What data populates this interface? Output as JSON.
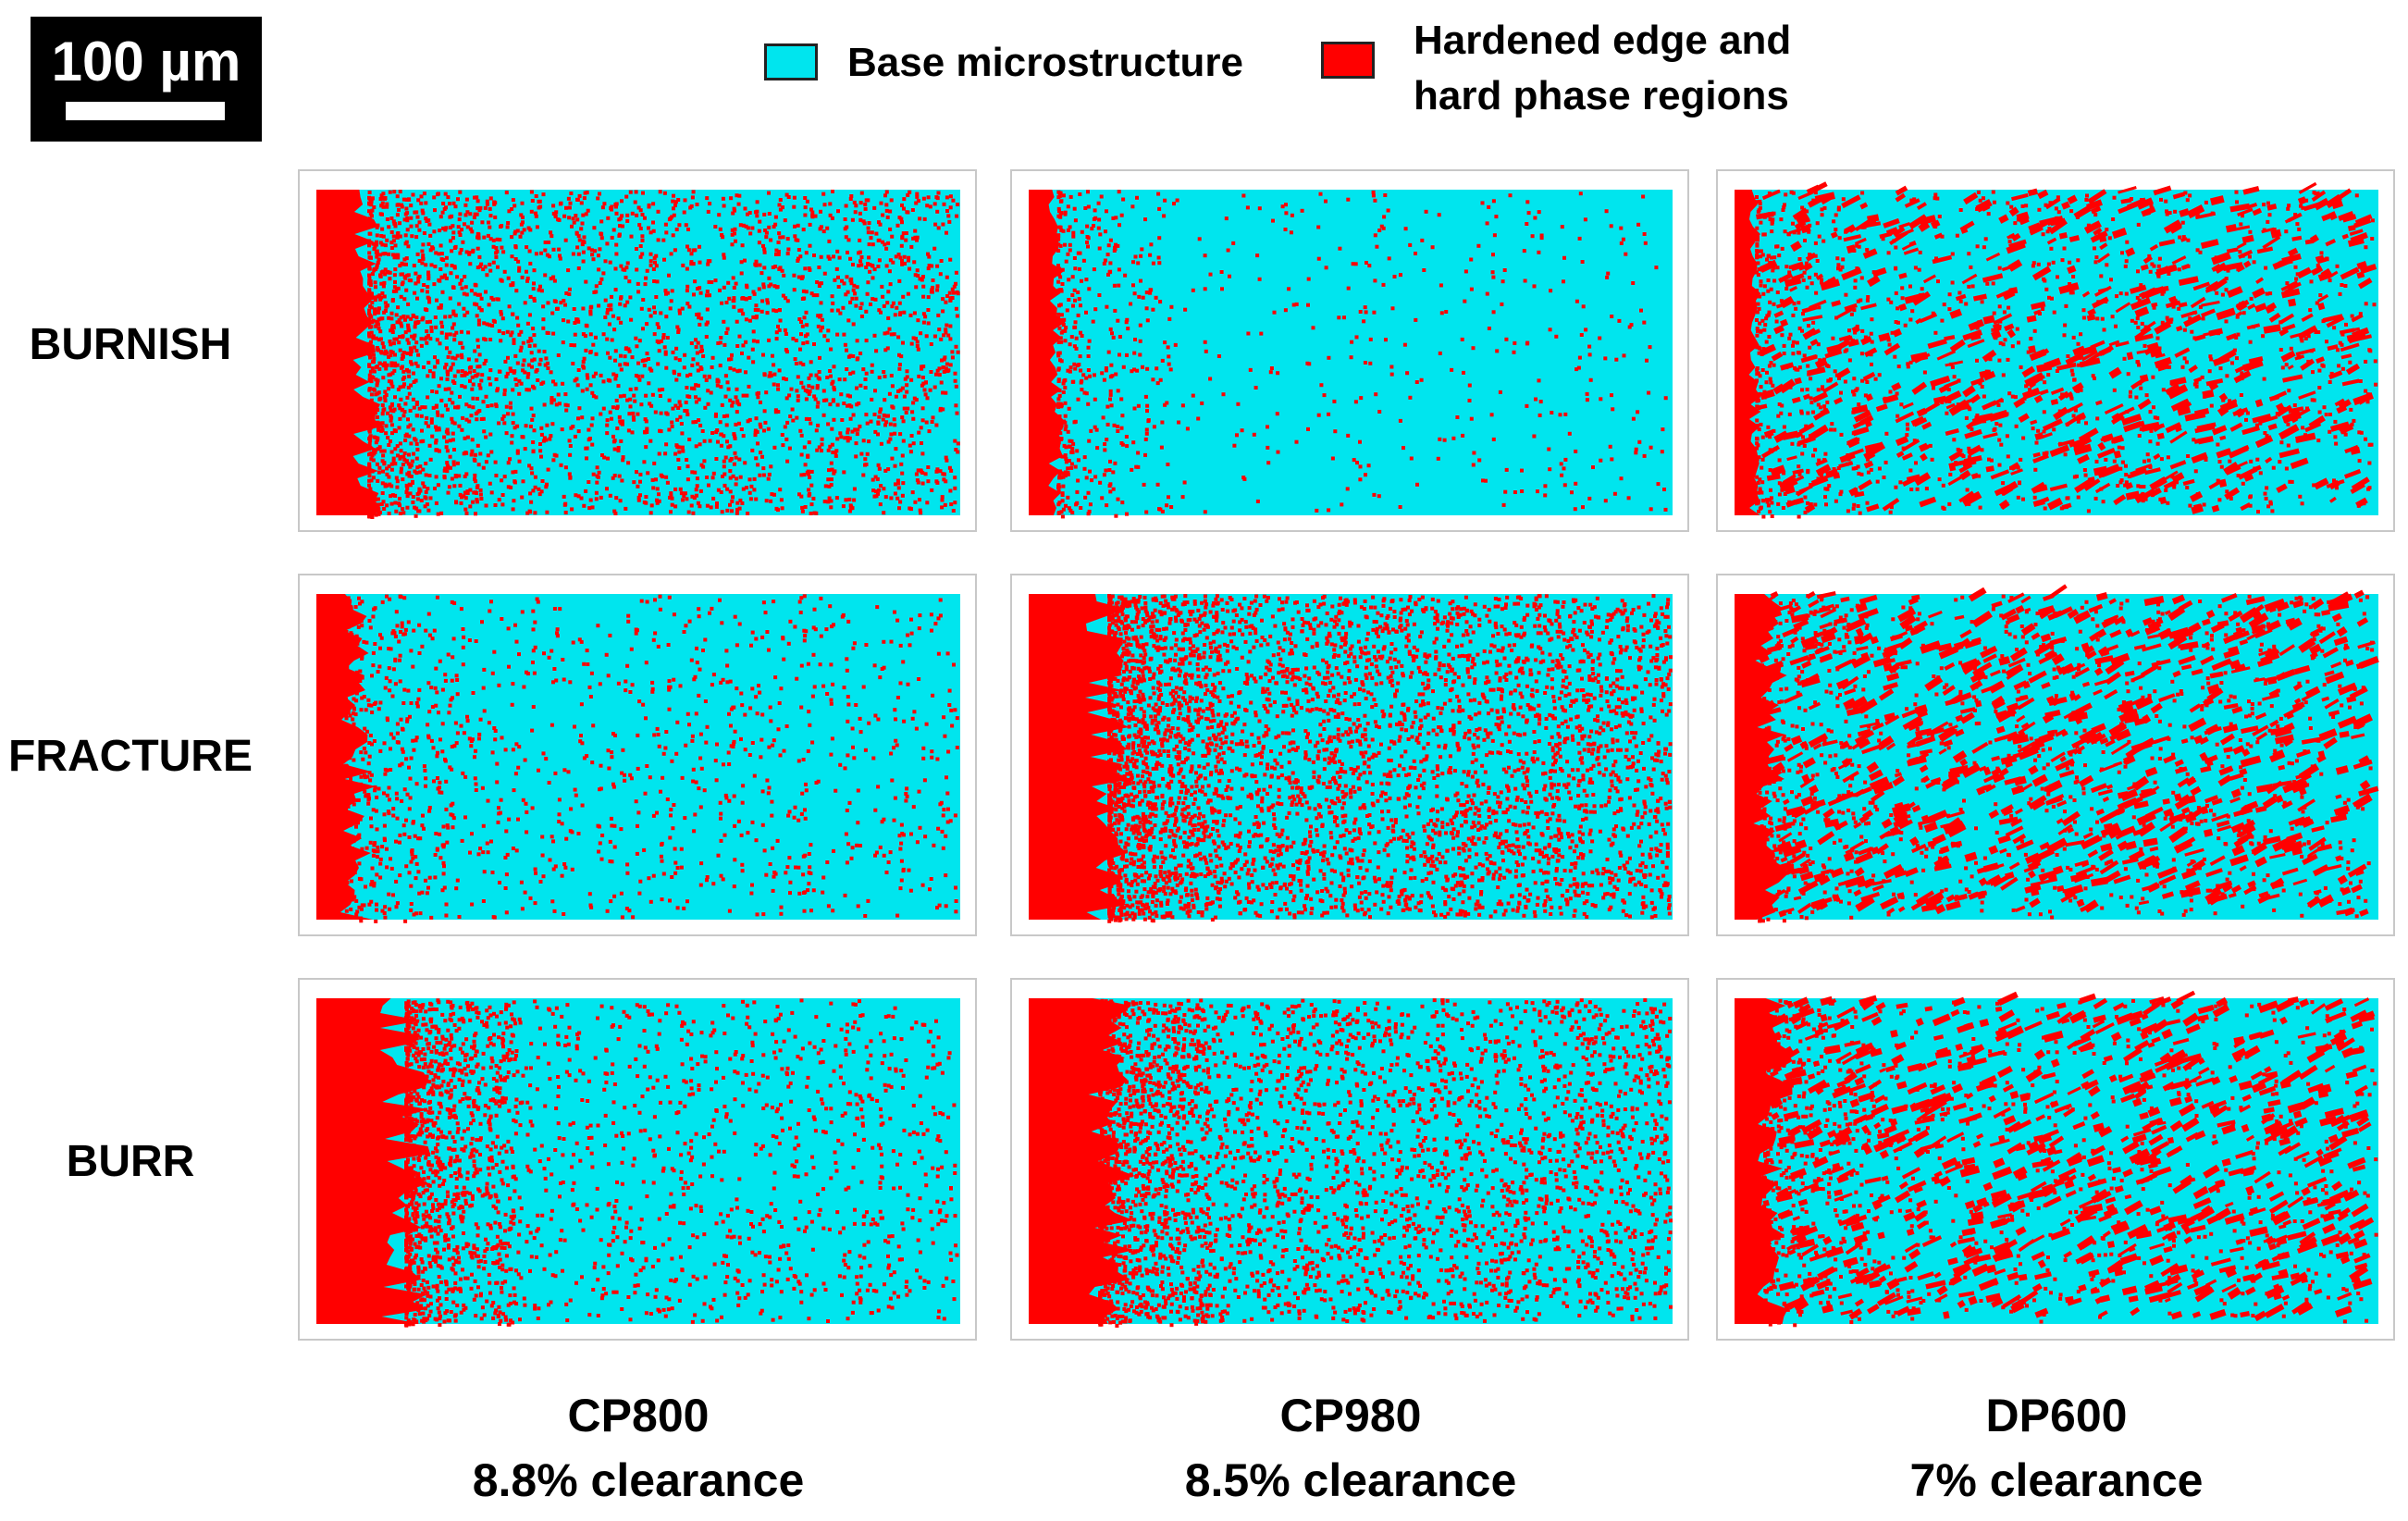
{
  "scale_bar": {
    "label": "100 µm"
  },
  "legend": [
    {
      "label_lines": [
        "Base microstructure"
      ],
      "color": "#00E5EE"
    },
    {
      "label_lines": [
        "Hardened edge and",
        "hard phase regions"
      ],
      "color": "#FF0000"
    }
  ],
  "row_labels": [
    "BURNISH",
    "FRACTURE",
    "BURR"
  ],
  "columns": [
    {
      "material": "CP800",
      "clearance": "8.8% clearance"
    },
    {
      "material": "CP980",
      "clearance": "8.5% clearance"
    },
    {
      "material": "DP600",
      "clearance": "7% clearance"
    }
  ],
  "colors": {
    "base": "#00E5EE",
    "hard": "#FF0000",
    "panel_border": "#c8c8c8"
  }
}
